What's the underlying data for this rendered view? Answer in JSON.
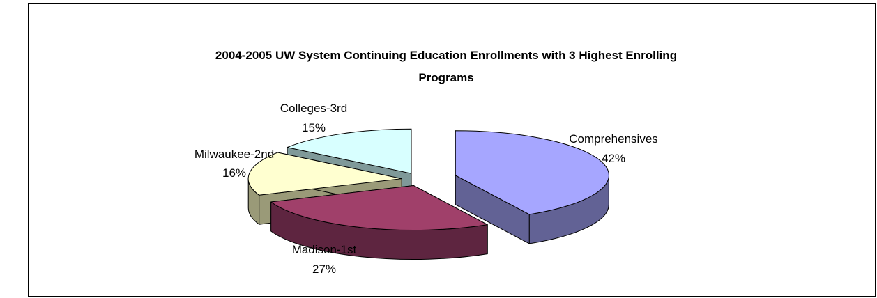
{
  "chart_data": {
    "type": "pie",
    "style": "3d-exploded",
    "title_line1": "2004-2005 UW System Continuing Education Enrollments with 3 Highest Enrolling",
    "title_line2": "Programs",
    "slices": [
      {
        "label": "Comprehensives",
        "pct_label": "42%",
        "value": 42,
        "top_color": "#a6a6ff",
        "side_color": "#626295"
      },
      {
        "label": "Madison-1st",
        "pct_label": "27%",
        "value": 27,
        "top_color": "#a0406a",
        "side_color": "#5e2540"
      },
      {
        "label": "Milwaukee-2nd",
        "pct_label": "16%",
        "value": 16,
        "top_color": "#ffffd0",
        "side_color": "#9a9a78"
      },
      {
        "label": "Colleges-3rd",
        "pct_label": "15%",
        "value": 15,
        "top_color": "#d8ffff",
        "side_color": "#7f9999"
      }
    ]
  }
}
